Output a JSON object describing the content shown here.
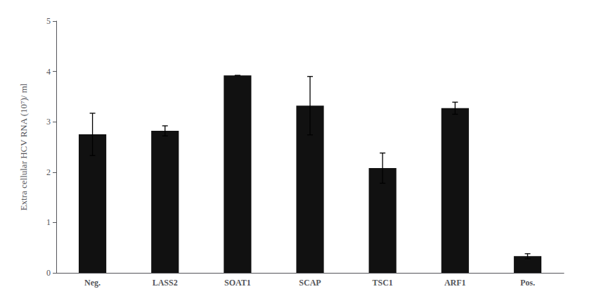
{
  "chart_data": {
    "type": "bar",
    "categories": [
      "Neg.",
      "LASS2",
      "SOAT1",
      "SCAP",
      "TSC1",
      "ARF1",
      "Pos."
    ],
    "values": [
      2.75,
      2.82,
      3.92,
      3.32,
      2.08,
      3.27,
      0.33
    ],
    "errors": [
      0.42,
      0.1,
      0.0,
      0.58,
      0.3,
      0.12,
      0.05
    ],
    "color": "#111111",
    "ylabel": "Extra cellular HCV RNA (10⁷)/ ml",
    "ylim": [
      0,
      5
    ],
    "yticks": [
      0,
      1,
      2,
      3,
      4,
      5
    ],
    "grid": false
  }
}
